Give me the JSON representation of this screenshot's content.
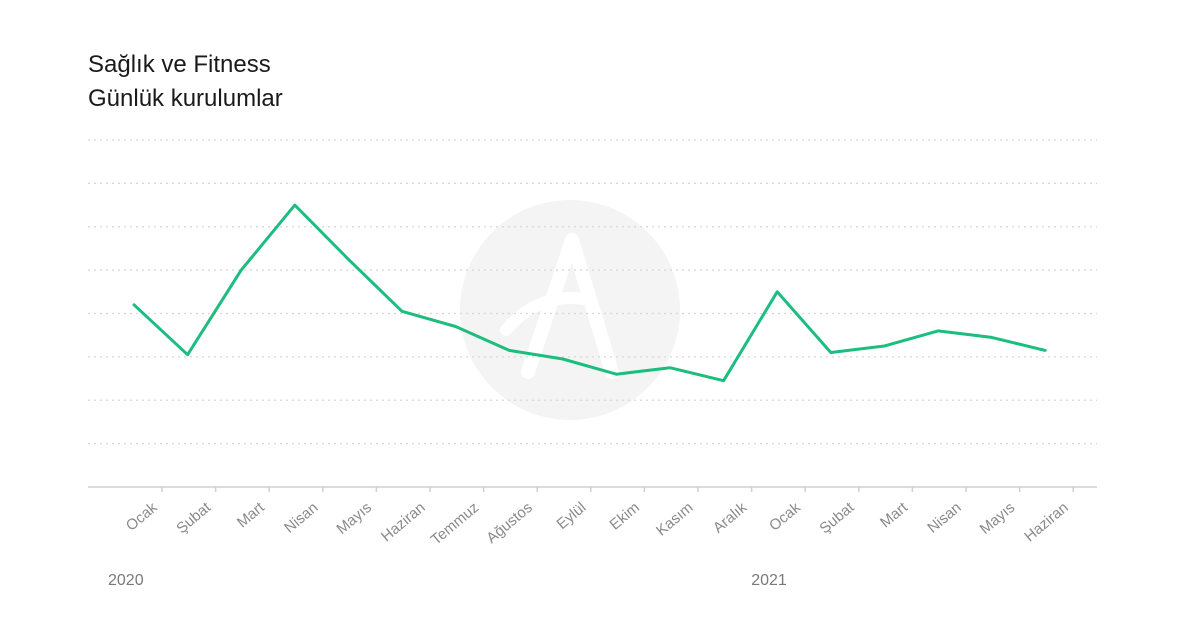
{
  "chart_data": {
    "type": "line",
    "title": "Sağlık ve Fitness",
    "subtitle": "Günlük kurulumlar",
    "categories": [
      "Ocak",
      "Şubat",
      "Mart",
      "Nisan",
      "Mayıs",
      "Haziran",
      "Temmuz",
      "Ağustos",
      "Eylül",
      "Ekim",
      "Kasım",
      "Aralık",
      "Ocak",
      "Şubat",
      "Mart",
      "Nisan",
      "Mayıs",
      "Haziran"
    ],
    "year_labels": [
      {
        "label": "2020",
        "index": 0
      },
      {
        "label": "2021",
        "index": 12
      }
    ],
    "series": [
      {
        "color": "#1dbd7f",
        "values": [
          4.2,
          3.05,
          5.0,
          6.5,
          5.25,
          4.05,
          3.7,
          3.15,
          2.95,
          2.6,
          2.75,
          2.45,
          4.5,
          3.1,
          3.25,
          3.6,
          3.45,
          3.15
        ]
      }
    ],
    "ylim": [
      0,
      8
    ],
    "y_gridlines": [
      1,
      2,
      3,
      4,
      5,
      6,
      7,
      8
    ],
    "grid": true,
    "legend": "none",
    "xlabel": "",
    "ylabel": ""
  },
  "colors": {
    "line": "#1dbd7f",
    "grid": "#d6d6d6",
    "axis": "#cfcfcf",
    "watermark": "#f4f4f4"
  }
}
